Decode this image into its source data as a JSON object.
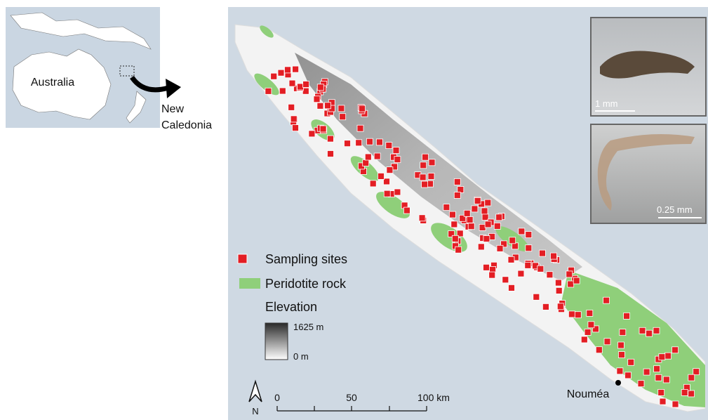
{
  "inset_map": {
    "label": "Australia",
    "callout": [
      "New",
      "Caledonia"
    ]
  },
  "legend": {
    "sampling_sites": "Sampling sites",
    "peridotite": "Peridotite rock",
    "elevation": {
      "title": "Elevation",
      "max": "1625 m",
      "min": "0 m"
    }
  },
  "north_arrow": "N",
  "scale_bar": [
    "0",
    "50",
    "100 km"
  ],
  "city": "Nouméa",
  "photos": [
    {
      "scale": "1 mm"
    },
    {
      "scale": "0.25 mm"
    }
  ]
}
